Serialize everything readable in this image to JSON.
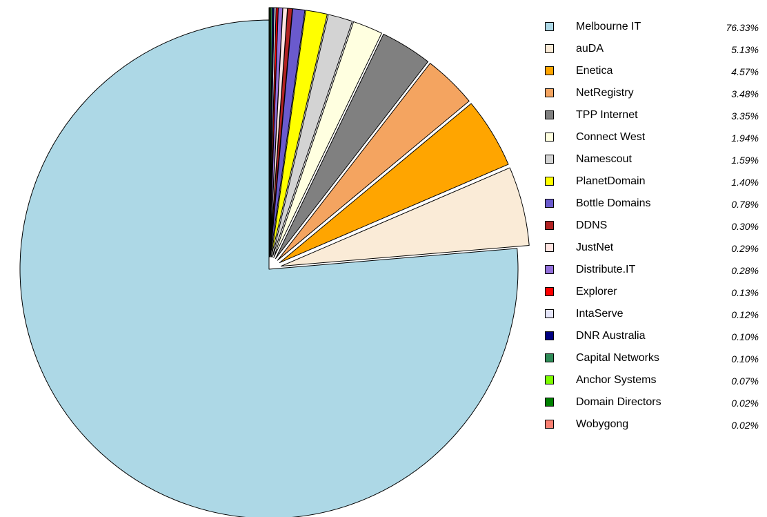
{
  "chart_data": {
    "type": "pie",
    "title": "",
    "start_angle": "12 o'clock",
    "direction": "counter-clockwise",
    "exploded_slices": [
      "auDA",
      "Enetica",
      "NetRegistry",
      "TPP Internet",
      "Connect West",
      "Namescout",
      "PlanetDomain",
      "Bottle Domains",
      "DDNS",
      "JustNet",
      "Distribute.IT",
      "Explorer",
      "IntaServe",
      "DNR Australia",
      "Capital Networks",
      "Anchor Systems",
      "Domain Directors",
      "Wobygong"
    ],
    "legend_position": "right",
    "slices": [
      {
        "label": "Melbourne IT",
        "value": 76.33,
        "display": "76.33%",
        "color": "#ADD8E6"
      },
      {
        "label": "auDA",
        "value": 5.13,
        "display": "5.13%",
        "color": "#FAEBD7"
      },
      {
        "label": "Enetica",
        "value": 4.57,
        "display": "4.57%",
        "color": "#FFA500"
      },
      {
        "label": "NetRegistry",
        "value": 3.48,
        "display": "3.48%",
        "color": "#F4A460"
      },
      {
        "label": "TPP Internet",
        "value": 3.35,
        "display": "3.35%",
        "color": "#808080"
      },
      {
        "label": "Connect West",
        "value": 1.94,
        "display": "1.94%",
        "color": "#FFFFE0"
      },
      {
        "label": "Namescout",
        "value": 1.59,
        "display": "1.59%",
        "color": "#D3D3D3"
      },
      {
        "label": "PlanetDomain",
        "value": 1.4,
        "display": "1.40%",
        "color": "#FFFF00"
      },
      {
        "label": "Bottle Domains",
        "value": 0.78,
        "display": "0.78%",
        "color": "#6A5ACD"
      },
      {
        "label": "DDNS",
        "value": 0.3,
        "display": "0.30%",
        "color": "#B22222"
      },
      {
        "label": "JustNet",
        "value": 0.29,
        "display": "0.29%",
        "color": "#FFE4E1"
      },
      {
        "label": "Distribute.IT",
        "value": 0.28,
        "display": "0.28%",
        "color": "#9370DB"
      },
      {
        "label": "Explorer",
        "value": 0.13,
        "display": "0.13%",
        "color": "#FF0000"
      },
      {
        "label": "IntaServe",
        "value": 0.12,
        "display": "0.12%",
        "color": "#E6E6FA"
      },
      {
        "label": "DNR Australia",
        "value": 0.1,
        "display": "0.10%",
        "color": "#000080"
      },
      {
        "label": "Capital Networks",
        "value": 0.1,
        "display": "0.10%",
        "color": "#2E8B57"
      },
      {
        "label": "Anchor Systems",
        "value": 0.07,
        "display": "0.07%",
        "color": "#7CFC00"
      },
      {
        "label": "Domain Directors",
        "value": 0.02,
        "display": "0.02%",
        "color": "#008000"
      },
      {
        "label": "Wobygong",
        "value": 0.02,
        "display": "0.02%",
        "color": "#FA8072"
      }
    ]
  }
}
